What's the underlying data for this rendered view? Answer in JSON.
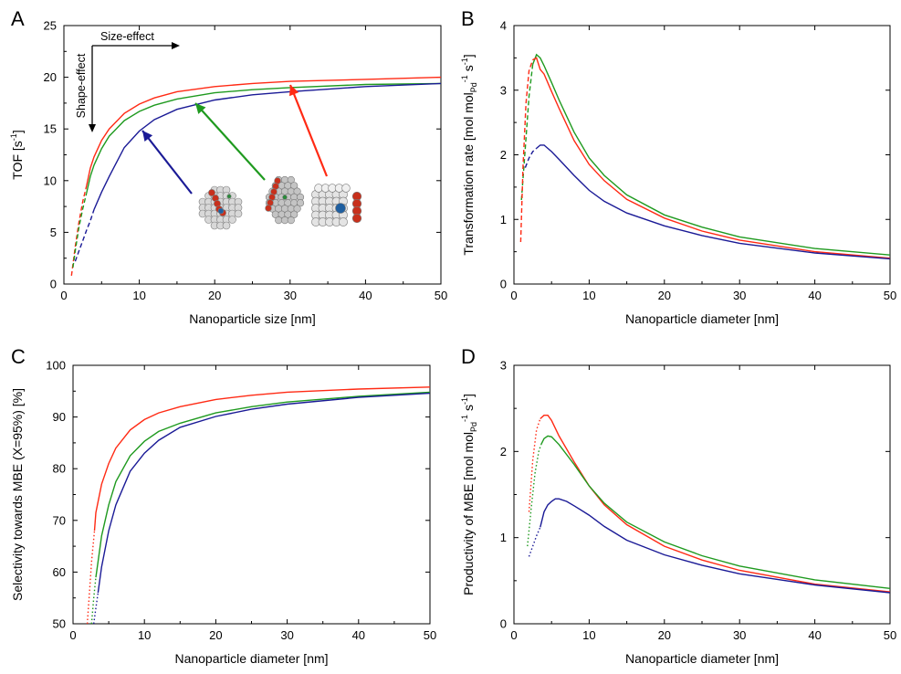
{
  "colors": {
    "red": "#ff2a14",
    "green": "#1f9a1f",
    "blue": "#1a1a96",
    "axis": "#000000"
  },
  "chart_data": [
    {
      "panel": "A",
      "type": "line",
      "xlabel": "Nanoparticle size [nm]",
      "ylabel": "TOF [s",
      "ylabel_sup": "-1",
      "ylabel_end": "]",
      "xlim": [
        0,
        50
      ],
      "ylim": [
        0,
        25
      ],
      "xticks": [
        "0",
        "10",
        "20",
        "30",
        "40",
        "50"
      ],
      "yticks": [
        "0",
        "5",
        "10",
        "15",
        "20",
        "25"
      ],
      "annotations": {
        "size_effect": "Size-effect",
        "shape_effect": "Shape-effect"
      },
      "icons": [
        "cuboctahedron-particle-icon",
        "octahedron-particle-icon",
        "cube-particle-icon"
      ],
      "series": [
        {
          "color": "red",
          "dashed_until": 3,
          "points": [
            [
              1.0,
              0.8
            ],
            [
              1.5,
              3.6
            ],
            [
              2.0,
              6.0
            ],
            [
              2.5,
              8.0
            ],
            [
              3.0,
              9.5
            ],
            [
              3.5,
              11.2
            ],
            [
              4,
              12.3
            ],
            [
              5,
              13.9
            ],
            [
              6,
              15.0
            ],
            [
              8,
              16.5
            ],
            [
              10,
              17.4
            ],
            [
              12,
              18.0
            ],
            [
              15,
              18.6
            ],
            [
              20,
              19.1
            ],
            [
              25,
              19.4
            ],
            [
              30,
              19.6
            ],
            [
              40,
              19.8
            ],
            [
              50,
              20.0
            ]
          ]
        },
        {
          "color": "green",
          "dashed_until": 3,
          "points": [
            [
              1.2,
              1.6
            ],
            [
              1.5,
              3.2
            ],
            [
              2.0,
              5.5
            ],
            [
              2.5,
              7.3
            ],
            [
              3.0,
              8.8
            ],
            [
              3.5,
              10.4
            ],
            [
              4,
              11.5
            ],
            [
              5,
              13.1
            ],
            [
              6,
              14.3
            ],
            [
              8,
              15.8
            ],
            [
              10,
              16.7
            ],
            [
              12,
              17.3
            ],
            [
              15,
              17.9
            ],
            [
              20,
              18.5
            ],
            [
              25,
              18.8
            ],
            [
              30,
              19.0
            ],
            [
              40,
              19.3
            ],
            [
              50,
              19.4
            ]
          ]
        },
        {
          "color": "blue",
          "dashed_until": 4,
          "points": [
            [
              1.5,
              2.2
            ],
            [
              2,
              3.2
            ],
            [
              2.5,
              4.2
            ],
            [
              3,
              5.2
            ],
            [
              3.5,
              6.1
            ],
            [
              4,
              7.2
            ],
            [
              5,
              8.9
            ],
            [
              6,
              10.4
            ],
            [
              8,
              13.2
            ],
            [
              10,
              14.8
            ],
            [
              12,
              15.9
            ],
            [
              15,
              16.9
            ],
            [
              20,
              17.8
            ],
            [
              25,
              18.3
            ],
            [
              30,
              18.6
            ],
            [
              40,
              19.1
            ],
            [
              50,
              19.4
            ]
          ]
        }
      ]
    },
    {
      "panel": "B",
      "type": "line",
      "xlabel": "Nanoparticle diameter [nm]",
      "ylabel_parts": [
        "Transformation rate [mol mol",
        "Pd",
        "-1",
        " s",
        "-1",
        "]"
      ],
      "xlim": [
        0,
        50
      ],
      "ylim": [
        0,
        4
      ],
      "xticks": [
        "0",
        "10",
        "20",
        "30",
        "40",
        "50"
      ],
      "yticks": [
        "0",
        "1",
        "2",
        "3",
        "4"
      ],
      "series": [
        {
          "color": "green",
          "dashed_until": 2.8,
          "points": [
            [
              1.0,
              1.3
            ],
            [
              1.5,
              2.1
            ],
            [
              2.0,
              2.9
            ],
            [
              2.5,
              3.4
            ],
            [
              3.0,
              3.55
            ],
            [
              3.5,
              3.5
            ],
            [
              4,
              3.38
            ],
            [
              5,
              3.12
            ],
            [
              6,
              2.85
            ],
            [
              8,
              2.35
            ],
            [
              10,
              1.95
            ],
            [
              12,
              1.68
            ],
            [
              15,
              1.38
            ],
            [
              20,
              1.07
            ],
            [
              25,
              0.88
            ],
            [
              30,
              0.73
            ],
            [
              40,
              0.55
            ],
            [
              50,
              0.45
            ]
          ]
        },
        {
          "color": "red",
          "dashed_until": 2.8,
          "points": [
            [
              0.9,
              0.65
            ],
            [
              1.2,
              1.8
            ],
            [
              1.6,
              2.8
            ],
            [
              2.0,
              3.3
            ],
            [
              2.5,
              3.47
            ],
            [
              3.0,
              3.5
            ],
            [
              3.5,
              3.32
            ],
            [
              4,
              3.25
            ],
            [
              5,
              2.98
            ],
            [
              6,
              2.72
            ],
            [
              8,
              2.22
            ],
            [
              10,
              1.85
            ],
            [
              12,
              1.6
            ],
            [
              15,
              1.31
            ],
            [
              20,
              1.02
            ],
            [
              25,
              0.82
            ],
            [
              30,
              0.68
            ],
            [
              40,
              0.5
            ],
            [
              50,
              0.4
            ]
          ]
        },
        {
          "color": "blue",
          "dashed_until": 3.2,
          "points": [
            [
              1.5,
              1.8
            ],
            [
              2.0,
              1.95
            ],
            [
              2.5,
              2.05
            ],
            [
              3.0,
              2.1
            ],
            [
              3.5,
              2.15
            ],
            [
              4,
              2.15
            ],
            [
              5,
              2.05
            ],
            [
              6,
              1.93
            ],
            [
              8,
              1.68
            ],
            [
              10,
              1.45
            ],
            [
              12,
              1.28
            ],
            [
              15,
              1.1
            ],
            [
              20,
              0.9
            ],
            [
              25,
              0.75
            ],
            [
              30,
              0.63
            ],
            [
              40,
              0.48
            ],
            [
              50,
              0.39
            ]
          ]
        }
      ]
    },
    {
      "panel": "C",
      "type": "line",
      "xlabel": "Nanoparticle diameter [nm]",
      "ylabel": "Selectivity towards MBE (X=95%) [%]",
      "xlim": [
        0,
        50
      ],
      "ylim": [
        50,
        100
      ],
      "xticks": [
        "0",
        "10",
        "20",
        "30",
        "40",
        "50"
      ],
      "yticks": [
        "50",
        "60",
        "70",
        "80",
        "90",
        "100"
      ],
      "series": [
        {
          "color": "red",
          "dotted_until": 3,
          "points": [
            [
              2.0,
              50
            ],
            [
              2.3,
              56
            ],
            [
              2.6,
              62
            ],
            [
              3.0,
              68
            ],
            [
              3.2,
              71.5
            ],
            [
              4,
              77
            ],
            [
              5,
              81
            ],
            [
              6,
              84
            ],
            [
              8,
              87.5
            ],
            [
              10,
              89.5
            ],
            [
              12,
              90.8
            ],
            [
              15,
              92
            ],
            [
              20,
              93.4
            ],
            [
              25,
              94.2
            ],
            [
              30,
              94.8
            ],
            [
              40,
              95.4
            ],
            [
              50,
              95.8
            ]
          ]
        },
        {
          "color": "green",
          "dotted_until": 3.4,
          "points": [
            [
              2.6,
              50
            ],
            [
              2.9,
              55
            ],
            [
              3.2,
              59
            ],
            [
              3.5,
              62
            ],
            [
              4,
              67
            ],
            [
              5,
              73
            ],
            [
              6,
              77.5
            ],
            [
              8,
              82.5
            ],
            [
              10,
              85.3
            ],
            [
              12,
              87.2
            ],
            [
              15,
              88.8
            ],
            [
              20,
              90.8
            ],
            [
              25,
              92
            ],
            [
              30,
              92.9
            ],
            [
              40,
              94
            ],
            [
              50,
              94.8
            ]
          ]
        },
        {
          "color": "blue",
          "dotted_until": 3.6,
          "points": [
            [
              2.9,
              50
            ],
            [
              3.2,
              53
            ],
            [
              3.5,
              56
            ],
            [
              4,
              61
            ],
            [
              5,
              68
            ],
            [
              6,
              73
            ],
            [
              8,
              79.5
            ],
            [
              10,
              83
            ],
            [
              12,
              85.5
            ],
            [
              15,
              88
            ],
            [
              20,
              90.1
            ],
            [
              25,
              91.5
            ],
            [
              30,
              92.5
            ],
            [
              40,
              93.8
            ],
            [
              50,
              94.6
            ]
          ]
        }
      ]
    },
    {
      "panel": "D",
      "type": "line",
      "xlabel": "Nanoparticle diameter [nm]",
      "ylabel_parts": [
        "Productivity of MBE [mol mol",
        "Pd",
        "-1",
        " s",
        "-1",
        "]"
      ],
      "xlim": [
        0,
        50
      ],
      "ylim": [
        0,
        3
      ],
      "xticks": [
        "0",
        "10",
        "20",
        "30",
        "40",
        "50"
      ],
      "yticks": [
        "0",
        "1",
        "2",
        "3"
      ],
      "series": [
        {
          "color": "red",
          "dotted_until": 3.5,
          "points": [
            [
              2.0,
              1.3
            ],
            [
              2.5,
              1.9
            ],
            [
              3.0,
              2.25
            ],
            [
              3.5,
              2.38
            ],
            [
              4,
              2.42
            ],
            [
              4.5,
              2.42
            ],
            [
              5,
              2.36
            ],
            [
              6,
              2.18
            ],
            [
              8,
              1.88
            ],
            [
              10,
              1.6
            ],
            [
              12,
              1.38
            ],
            [
              15,
              1.15
            ],
            [
              20,
              0.9
            ],
            [
              25,
              0.74
            ],
            [
              30,
              0.62
            ],
            [
              40,
              0.46
            ],
            [
              50,
              0.37
            ]
          ]
        },
        {
          "color": "green",
          "dotted_until": 3.6,
          "points": [
            [
              1.8,
              0.9
            ],
            [
              2.3,
              1.35
            ],
            [
              2.8,
              1.75
            ],
            [
              3.3,
              2.0
            ],
            [
              3.6,
              2.08
            ],
            [
              4,
              2.15
            ],
            [
              4.5,
              2.18
            ],
            [
              5,
              2.17
            ],
            [
              6,
              2.08
            ],
            [
              8,
              1.85
            ],
            [
              10,
              1.6
            ],
            [
              12,
              1.4
            ],
            [
              15,
              1.18
            ],
            [
              20,
              0.95
            ],
            [
              25,
              0.79
            ],
            [
              30,
              0.67
            ],
            [
              40,
              0.51
            ],
            [
              50,
              0.41
            ]
          ]
        },
        {
          "color": "blue",
          "dotted_until": 3.5,
          "points": [
            [
              2.0,
              0.78
            ],
            [
              2.5,
              0.9
            ],
            [
              3.0,
              1.02
            ],
            [
              3.5,
              1.12
            ],
            [
              4,
              1.3
            ],
            [
              4.5,
              1.38
            ],
            [
              5,
              1.42
            ],
            [
              5.5,
              1.45
            ],
            [
              6,
              1.45
            ],
            [
              7,
              1.42
            ],
            [
              8,
              1.37
            ],
            [
              10,
              1.26
            ],
            [
              12,
              1.13
            ],
            [
              15,
              0.97
            ],
            [
              20,
              0.8
            ],
            [
              25,
              0.68
            ],
            [
              30,
              0.58
            ],
            [
              40,
              0.45
            ],
            [
              50,
              0.36
            ]
          ]
        }
      ]
    }
  ]
}
